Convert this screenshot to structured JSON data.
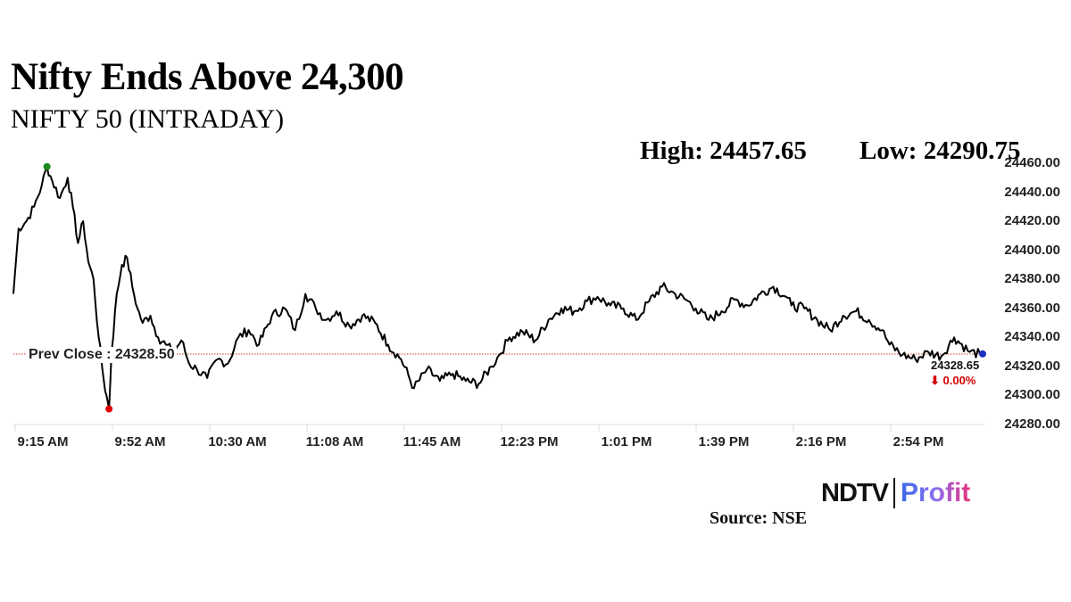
{
  "header": {
    "title": "Nifty Ends Above 24,300",
    "subtitle": "NIFTY 50 (INTRADAY)",
    "high_label": "High: 24457.65",
    "low_label": "Low: 24290.75"
  },
  "annotations": {
    "prev_close_label": "Prev Close : 24328.50",
    "last_value": "24328.65",
    "change": "⬇ 0.00%"
  },
  "footer": {
    "brand_left": "NDTV",
    "brand_right": "Profit",
    "source": "Source: NSE"
  },
  "colors": {
    "line": "#000000",
    "prev_close": "#c0392b",
    "high_marker": "#1a8a1a",
    "low_marker": "#e00000",
    "last_marker": "#1a2fbf",
    "change_down": "#d40000"
  },
  "chart_data": {
    "type": "line",
    "title": "Nifty Ends Above 24,300",
    "subtitle": "NIFTY 50 (INTRADAY)",
    "xlabel": "",
    "ylabel": "",
    "ylim": [
      24280,
      24460
    ],
    "y_ticks": [
      "24460.00",
      "24440.00",
      "24420.00",
      "24400.00",
      "24380.00",
      "24360.00",
      "24340.00",
      "24320.00",
      "24300.00",
      "24280.00"
    ],
    "x_ticks": [
      "9:15 AM",
      "9:52 AM",
      "10:30 AM",
      "11:08 AM",
      "11:45 AM",
      "12:23 PM",
      "1:01 PM",
      "1:39 PM",
      "2:16 PM",
      "2:54 PM"
    ],
    "grid": false,
    "legend": null,
    "prev_close": 24328.5,
    "high": 24457.65,
    "low": 24290.75,
    "last": 24328.65,
    "change_pct": "0.00%",
    "series": [
      {
        "name": "NIFTY 50",
        "x": [
          "9:15",
          "9:17",
          "9:20",
          "9:23",
          "9:26",
          "9:28",
          "9:30",
          "9:33",
          "9:36",
          "9:38",
          "9:40",
          "9:42",
          "9:44",
          "9:46",
          "9:48",
          "9:50",
          "9:51",
          "9:52",
          "9:53",
          "9:55",
          "9:57",
          "9:59",
          "10:01",
          "10:03",
          "10:05",
          "10:08",
          "10:11",
          "10:14",
          "10:17",
          "10:20",
          "10:23",
          "10:26",
          "10:30",
          "10:34",
          "10:38",
          "10:42",
          "10:46",
          "10:50",
          "10:55",
          "11:00",
          "11:04",
          "11:08",
          "11:12",
          "11:16",
          "11:20",
          "11:25",
          "11:30",
          "11:35",
          "11:40",
          "11:45",
          "11:50",
          "11:55",
          "12:00",
          "12:05",
          "12:10",
          "12:15",
          "12:20",
          "12:23",
          "12:27",
          "12:32",
          "12:37",
          "12:42",
          "12:47",
          "12:52",
          "12:57",
          "1:01",
          "1:06",
          "1:11",
          "1:16",
          "1:21",
          "1:26",
          "1:31",
          "1:36",
          "1:39",
          "1:44",
          "1:49",
          "1:54",
          "1:59",
          "2:04",
          "2:09",
          "2:14",
          "2:16",
          "2:21",
          "2:26",
          "2:31",
          "2:36",
          "2:41",
          "2:46",
          "2:51",
          "2:54",
          "2:59",
          "3:04",
          "3:09",
          "3:14",
          "3:19",
          "3:25",
          "3:29"
        ],
        "values": [
          24370,
          24415,
          24420,
          24430,
          24445,
          24457.65,
          24448,
          24436,
          24450,
          24430,
          24405,
          24420,
          24392,
          24380,
          24340,
          24310,
          24300,
          24290.75,
          24330,
          24370,
          24390,
          24395,
          24375,
          24360,
          24350,
          24355,
          24340,
          24335,
          24330,
          24338,
          24322,
          24318,
          24312,
          24325,
          24322,
          24340,
          24345,
          24335,
          24355,
          24360,
          24345,
          24370,
          24360,
          24352,
          24358,
          24348,
          24355,
          24350,
          24335,
          24325,
          24305,
          24318,
          24310,
          24315,
          24310,
          24308,
          24320,
          24328,
          24340,
          24344,
          24338,
          24352,
          24360,
          24358,
          24365,
          24368,
          24362,
          24360,
          24352,
          24365,
          24375,
          24370,
          24365,
          24360,
          24352,
          24358,
          24366,
          24362,
          24370,
          24375,
          24368,
          24362,
          24360,
          24352,
          24345,
          24355,
          24358,
          24352,
          24345,
          24335,
          24328,
          24325,
          24330,
          24327,
          24340,
          24330,
          24328.65
        ]
      }
    ]
  }
}
